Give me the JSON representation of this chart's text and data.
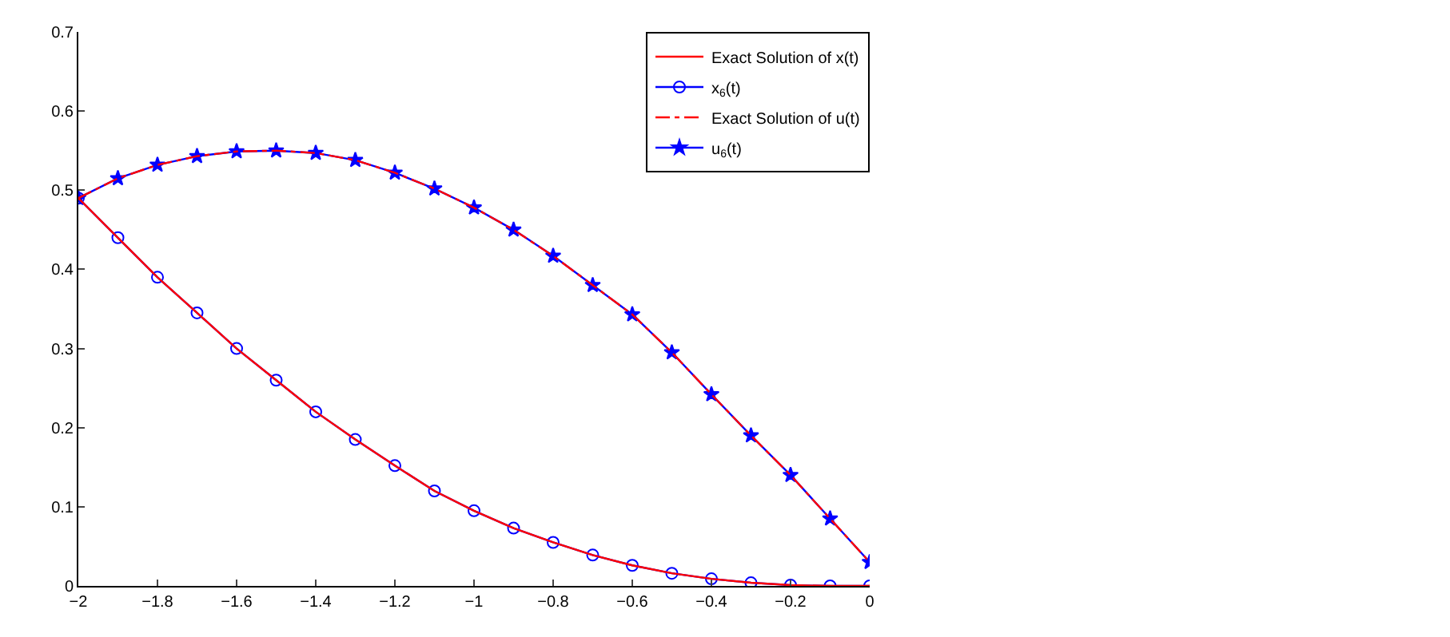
{
  "chart_data": {
    "type": "line",
    "x": [
      -2,
      -1.9,
      -1.8,
      -1.7,
      -1.6,
      -1.5,
      -1.4,
      -1.3,
      -1.2,
      -1.1,
      -1.0,
      -0.9,
      -0.8,
      -0.7,
      -0.6,
      -0.5,
      -0.4,
      -0.3,
      -0.2,
      -0.1,
      0
    ],
    "series": [
      {
        "name": "Exact Solution of x(t)",
        "color": "#ff0000",
        "line_style": "solid",
        "marker": "none",
        "values": [
          0.49,
          0.44,
          0.39,
          0.345,
          0.3,
          0.26,
          0.22,
          0.185,
          0.152,
          0.12,
          0.095,
          0.073,
          0.055,
          0.039,
          0.026,
          0.016,
          0.009,
          0.004,
          0.001,
          0,
          0
        ]
      },
      {
        "name": "x$_{6}$(t)",
        "color": "#0000ff",
        "line_style": "solid",
        "marker": "circle",
        "values": [
          0.49,
          0.44,
          0.39,
          0.345,
          0.3,
          0.26,
          0.22,
          0.185,
          0.152,
          0.12,
          0.095,
          0.073,
          0.055,
          0.039,
          0.026,
          0.016,
          0.009,
          0.004,
          0.001,
          0,
          0
        ]
      },
      {
        "name": "Exact Solution of u(t)",
        "color": "#ff0000",
        "line_style": "dashdot",
        "marker": "none",
        "values": [
          0.49,
          0.515,
          0.532,
          0.543,
          0.549,
          0.55,
          0.547,
          0.538,
          0.522,
          0.502,
          0.478,
          0.45,
          0.417,
          0.38,
          0.343,
          0.295,
          0.242,
          0.19,
          0.14,
          0.085,
          0.03
        ]
      },
      {
        "name": "u$_{6}$(t)",
        "color": "#0000ff",
        "line_style": "solid",
        "marker": "star",
        "values": [
          0.49,
          0.515,
          0.532,
          0.543,
          0.549,
          0.55,
          0.547,
          0.538,
          0.522,
          0.502,
          0.478,
          0.45,
          0.417,
          0.38,
          0.343,
          0.295,
          0.242,
          0.19,
          0.14,
          0.085,
          0.03
        ]
      }
    ],
    "xlim": [
      -2,
      0
    ],
    "xticks": [
      {
        "value": -2,
        "label": "−2"
      },
      {
        "value": -1.8,
        "label": "−1.8"
      },
      {
        "value": -1.6,
        "label": "−1.6"
      },
      {
        "value": -1.4,
        "label": "−1.4"
      },
      {
        "value": -1.2,
        "label": "−1.2"
      },
      {
        "value": -1,
        "label": "−1"
      },
      {
        "value": -0.8,
        "label": "−0.8"
      },
      {
        "value": -0.6,
        "label": "−0.6"
      },
      {
        "value": -0.4,
        "label": "−0.4"
      },
      {
        "value": -0.2,
        "label": "−0.2"
      },
      0
    ],
    "ylim": [
      0,
      0.7
    ],
    "yticks": [
      0,
      0.1,
      0.2,
      0.3,
      0.4,
      0.5,
      0.6,
      0.7
    ],
    "legend": "top right"
  }
}
